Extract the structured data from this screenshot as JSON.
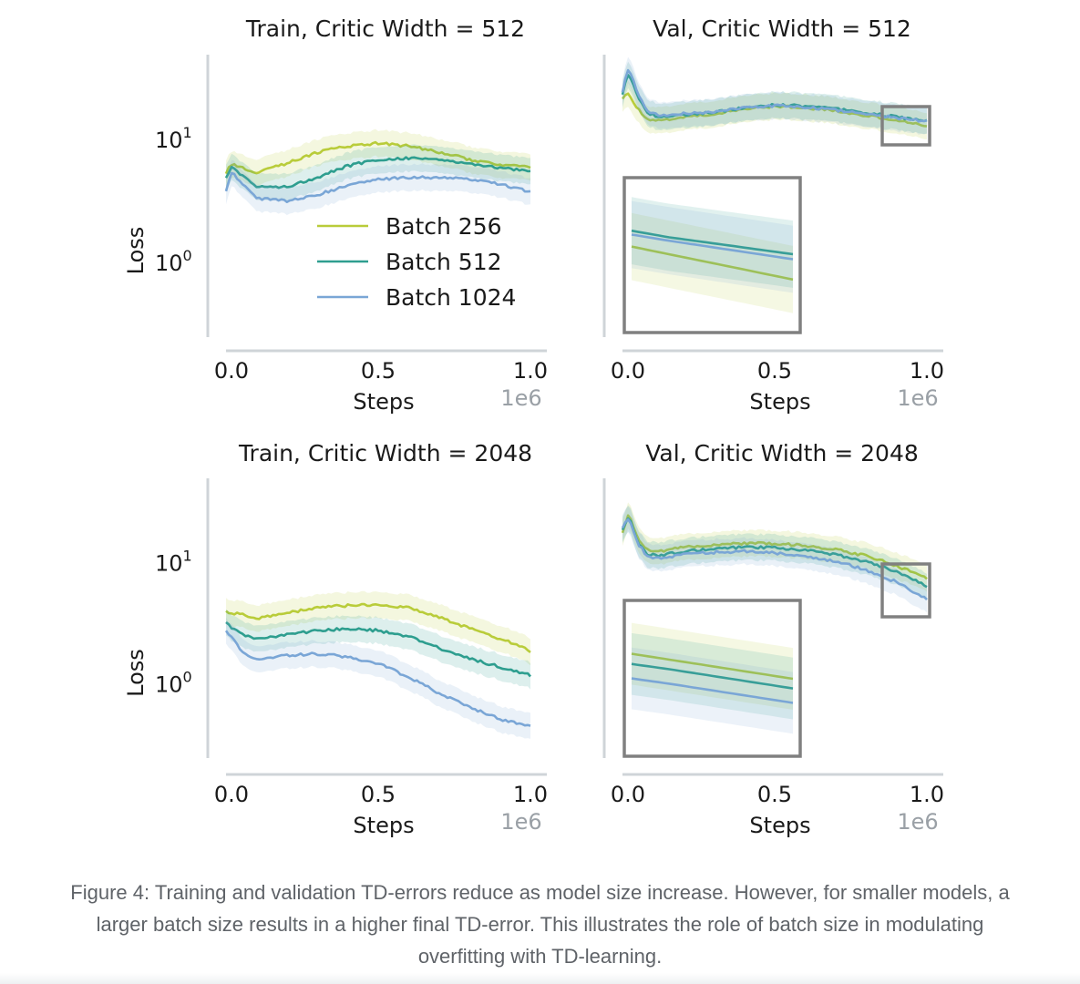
{
  "figure_caption": {
    "label": "Figure 4:",
    "line1": " Training and validation TD-errors reduce as model size increase. However, for smaller models, a",
    "line2": "larger batch size results in a higher final TD-error. This illustrates the role of batch size in modulating",
    "line3": "overfitting with TD-learning."
  },
  "colors": {
    "batch_256": "#b9cc3a",
    "batch_512": "#2e9e8f",
    "batch_1024": "#7aa6d6",
    "axis": "#cfd4d8",
    "inset_box": "#808080"
  },
  "chart_data": [
    {
      "id": "train-512",
      "type": "line",
      "title": "Train, Critic Width = 512",
      "xlabel": "Steps",
      "ylabel": "Loss",
      "x_offset_label": "1e6",
      "xscale": "linear",
      "yscale": "log",
      "xlim": [
        0,
        1.0
      ],
      "ylim": [
        0.25,
        50
      ],
      "xticks": [
        0.0,
        0.5,
        1.0
      ],
      "xtick_labels": [
        "0.0",
        "0.5",
        "1.0"
      ],
      "yticks": [
        {
          "value": 10,
          "base": "10",
          "exp": "1"
        },
        {
          "value": 1,
          "base": "10",
          "exp": "0"
        }
      ],
      "legend": {
        "position": "center-left",
        "entries": [
          "Batch 256",
          "Batch 512",
          "Batch 1024"
        ]
      },
      "x": [
        0.0,
        0.02,
        0.05,
        0.1,
        0.2,
        0.3,
        0.4,
        0.5,
        0.6,
        0.7,
        0.8,
        0.9,
        1.0
      ],
      "series": [
        {
          "name": "Batch 256",
          "values": [
            5.5,
            6.5,
            6.0,
            5.5,
            6.5,
            8.0,
            9.0,
            9.5,
            9.0,
            8.0,
            7.0,
            6.3,
            6.0
          ]
        },
        {
          "name": "Batch 512",
          "values": [
            5.0,
            6.2,
            5.2,
            4.2,
            4.2,
            5.0,
            6.2,
            7.0,
            7.2,
            7.0,
            6.5,
            6.0,
            5.6
          ]
        },
        {
          "name": "Batch 1024",
          "values": [
            3.8,
            5.5,
            4.5,
            3.4,
            3.2,
            3.6,
            4.3,
            4.8,
            5.0,
            5.0,
            4.8,
            4.4,
            3.8
          ]
        }
      ]
    },
    {
      "id": "val-512",
      "type": "line",
      "title": "Val, Critic Width = 512",
      "xlabel": "Steps",
      "ylabel": "",
      "x_offset_label": "1e6",
      "xscale": "linear",
      "yscale": "log",
      "xlim": [
        0,
        1.0
      ],
      "ylim": [
        0.25,
        50
      ],
      "xticks": [
        0.0,
        0.5,
        1.0
      ],
      "xtick_labels": [
        "0.0",
        "0.5",
        "1.0"
      ],
      "yticks": [],
      "inset": {
        "location": "lower-left",
        "x_range": [
          0.87,
          1.0
        ]
      },
      "x": [
        0.0,
        0.02,
        0.05,
        0.08,
        0.12,
        0.2,
        0.3,
        0.4,
        0.5,
        0.6,
        0.7,
        0.8,
        0.9,
        1.0
      ],
      "series": [
        {
          "name": "Batch 256",
          "values": [
            22,
            24,
            18,
            15,
            14.5,
            15.5,
            16.5,
            18,
            19,
            18.5,
            17.5,
            16,
            14.5,
            13
          ]
        },
        {
          "name": "Batch 512",
          "values": [
            24,
            35,
            22,
            17,
            15.5,
            16,
            17,
            18.5,
            19.5,
            19,
            18,
            16.8,
            15.5,
            14.5
          ]
        },
        {
          "name": "Batch 1024",
          "values": [
            25,
            38,
            24,
            17.5,
            16,
            16.5,
            17.2,
            18.5,
            19.2,
            18.7,
            17.7,
            16.5,
            15.3,
            14.2
          ]
        }
      ]
    },
    {
      "id": "train-2048",
      "type": "line",
      "title": "Train, Critic Width = 2048",
      "xlabel": "Steps",
      "ylabel": "Loss",
      "x_offset_label": "1e6",
      "xscale": "linear",
      "yscale": "log",
      "xlim": [
        0,
        1.0
      ],
      "ylim": [
        0.25,
        50
      ],
      "xticks": [
        0.0,
        0.5,
        1.0
      ],
      "xtick_labels": [
        "0.0",
        "0.5",
        "1.0"
      ],
      "yticks": [
        {
          "value": 10,
          "base": "10",
          "exp": "1"
        },
        {
          "value": 1,
          "base": "10",
          "exp": "0"
        }
      ],
      "x": [
        0.0,
        0.05,
        0.1,
        0.2,
        0.3,
        0.4,
        0.5,
        0.6,
        0.7,
        0.8,
        0.9,
        1.0
      ],
      "series": [
        {
          "name": "Batch 256",
          "values": [
            4.0,
            3.8,
            3.5,
            3.9,
            4.3,
            4.5,
            4.6,
            4.3,
            3.6,
            2.9,
            2.4,
            1.9
          ]
        },
        {
          "name": "Batch 512",
          "values": [
            3.2,
            2.6,
            2.4,
            2.6,
            2.8,
            2.9,
            2.8,
            2.5,
            2.0,
            1.65,
            1.4,
            1.2
          ]
        },
        {
          "name": "Batch 1024",
          "values": [
            2.8,
            1.9,
            1.6,
            1.75,
            1.8,
            1.7,
            1.5,
            1.15,
            0.85,
            0.65,
            0.52,
            0.45
          ]
        }
      ]
    },
    {
      "id": "val-2048",
      "type": "line",
      "title": "Val, Critic Width = 2048",
      "xlabel": "Steps",
      "ylabel": "",
      "x_offset_label": "1e6",
      "xscale": "linear",
      "yscale": "log",
      "xlim": [
        0,
        1.0
      ],
      "ylim": [
        0.25,
        50
      ],
      "xticks": [
        0.0,
        0.5,
        1.0
      ],
      "xtick_labels": [
        "0.0",
        "0.5",
        "1.0"
      ],
      "yticks": [],
      "inset": {
        "location": "lower-left",
        "x_range": [
          0.87,
          1.0
        ]
      },
      "x": [
        0.0,
        0.02,
        0.05,
        0.08,
        0.12,
        0.2,
        0.3,
        0.4,
        0.5,
        0.6,
        0.7,
        0.8,
        0.9,
        1.0
      ],
      "series": [
        {
          "name": "Batch 256",
          "values": [
            18,
            25,
            16,
            13,
            12.5,
            13.5,
            14.2,
            14.6,
            14.5,
            14,
            13,
            11.5,
            9.5,
            7.5
          ]
        },
        {
          "name": "Batch 512",
          "values": [
            19,
            24,
            15,
            12,
            11.5,
            12.5,
            13.2,
            13.6,
            13.4,
            12.8,
            11.8,
            10.3,
            8.5,
            6.5
          ]
        },
        {
          "name": "Batch 1024",
          "values": [
            20,
            23,
            14.5,
            11.5,
            11,
            11.8,
            12.3,
            12.6,
            12.2,
            11.5,
            10.4,
            8.8,
            7,
            5
          ]
        }
      ]
    }
  ]
}
